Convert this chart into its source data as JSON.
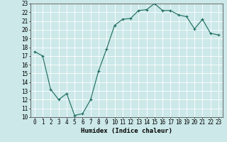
{
  "x": [
    0,
    1,
    2,
    3,
    4,
    5,
    6,
    7,
    8,
    9,
    10,
    11,
    12,
    13,
    14,
    15,
    16,
    17,
    18,
    19,
    20,
    21,
    22,
    23
  ],
  "y": [
    17.5,
    17.0,
    13.2,
    12.0,
    12.7,
    10.2,
    10.4,
    12.0,
    15.3,
    17.8,
    20.5,
    21.2,
    21.3,
    22.2,
    22.3,
    23.0,
    22.2,
    22.2,
    21.7,
    21.5,
    20.1,
    21.2,
    19.6,
    19.4
  ],
  "line_color": "#1a6b5a",
  "marker": "+",
  "marker_color": "#1a6b5a",
  "bg_color": "#cce8e8",
  "grid_color": "#ffffff",
  "xlabel": "Humidex (Indice chaleur)",
  "xlabel_fontsize": 6.5,
  "tick_fontsize": 5.5,
  "ylim": [
    10,
    23
  ],
  "xlim": [
    -0.5,
    23.5
  ],
  "yticks": [
    10,
    11,
    12,
    13,
    14,
    15,
    16,
    17,
    18,
    19,
    20,
    21,
    22,
    23
  ],
  "xticks": [
    0,
    1,
    2,
    3,
    4,
    5,
    6,
    7,
    8,
    9,
    10,
    11,
    12,
    13,
    14,
    15,
    16,
    17,
    18,
    19,
    20,
    21,
    22,
    23
  ]
}
